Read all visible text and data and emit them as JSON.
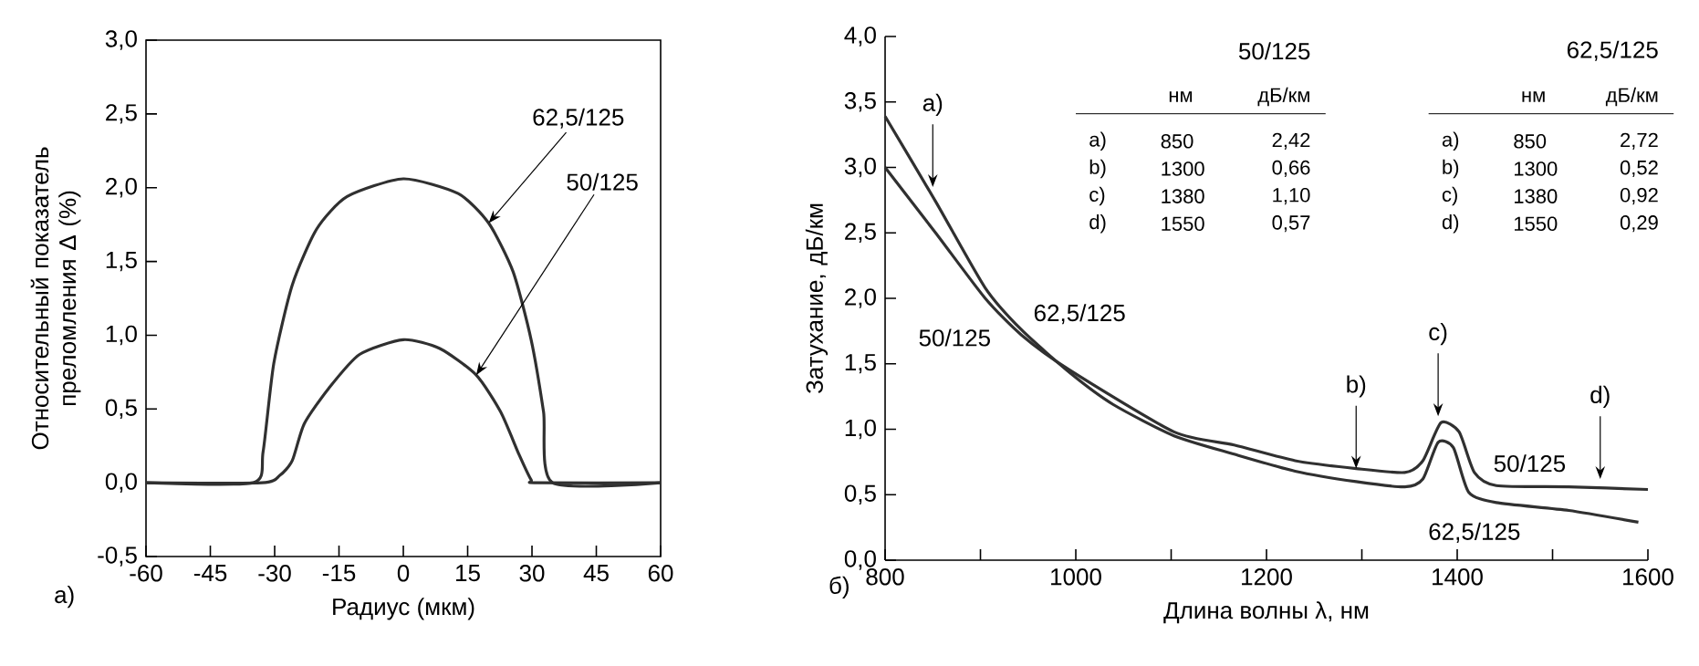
{
  "chart_data": [
    {
      "type": "line",
      "xlabel": "Радиус (мкм)",
      "ylabel": "Относительный показатель преломления Δ (%)",
      "xlim": [
        -60,
        60
      ],
      "ylim": [
        -0.5,
        3.0
      ],
      "xticks": [
        -60,
        -45,
        -30,
        -15,
        0,
        15,
        30,
        45,
        60
      ],
      "yticks": [
        {
          "value": -0.5,
          "label": "-0,5"
        },
        {
          "value": 0,
          "label": "0,0"
        },
        {
          "value": 0.5,
          "label": "0,5"
        },
        {
          "value": 1.0,
          "label": "1,0"
        },
        {
          "value": 1.5,
          "label": "1,5"
        },
        {
          "value": 2.0,
          "label": "2,0"
        },
        {
          "value": 2.5,
          "label": "2,5"
        },
        {
          "value": 3.0,
          "label": "3,0"
        }
      ],
      "series": [
        {
          "name": "62,5/125",
          "color": "#303030",
          "x": [
            -60,
            -35,
            -32.7,
            -30.2,
            -25.9,
            -20.2,
            -13.1,
            0,
            12.8,
            19.9,
            25.6,
            29.8,
            32.7,
            34.8,
            60
          ],
          "values": [
            0,
            0,
            0.21,
            0.81,
            1.34,
            1.72,
            1.94,
            2.06,
            1.96,
            1.76,
            1.43,
            0.97,
            0.48,
            0,
            0
          ]
        },
        {
          "name": "50/125",
          "color": "#303030",
          "x": [
            -60,
            -33,
            -28.8,
            -25.9,
            -23.1,
            -17.4,
            -10.2,
            0,
            8.5,
            17.0,
            22.7,
            27.0,
            29.8,
            31.2,
            60
          ],
          "values": [
            0,
            0,
            0.05,
            0.15,
            0.4,
            0.64,
            0.87,
            0.97,
            0.91,
            0.73,
            0.48,
            0.19,
            0.02,
            0,
            0
          ]
        }
      ],
      "annotations": [
        "а)"
      ]
    },
    {
      "type": "line",
      "xlabel": "Длина волны λ, нм",
      "ylabel": "Затухание, дБ/км",
      "xlim": [
        800,
        1600
      ],
      "ylim": [
        0,
        4.0
      ],
      "xticks": [
        800,
        {
          "value": 900,
          "label": null
        },
        1000,
        {
          "value": 1100,
          "label": null
        },
        1200,
        {
          "value": 1300,
          "label": null
        },
        1400,
        {
          "value": 1500,
          "label": null
        },
        1600
      ],
      "yticks": [
        {
          "value": 0,
          "label": "0,0"
        },
        {
          "value": 0.5,
          "label": "0,5"
        },
        {
          "value": 1.0,
          "label": "1,0"
        },
        {
          "value": 1.5,
          "label": "1,5"
        },
        {
          "value": 2.0,
          "label": "2,0"
        },
        {
          "value": 2.5,
          "label": "2,5"
        },
        {
          "value": 3.0,
          "label": "3,0"
        },
        {
          "value": 3.5,
          "label": "3,5"
        },
        {
          "value": 4.0,
          "label": "4,0"
        }
      ],
      "series": [
        {
          "name": "62,5/125",
          "color": "#303030",
          "x": [
            800,
            853,
            905,
            943,
            994,
            1039,
            1103,
            1166,
            1230,
            1294,
            1345,
            1364,
            1380,
            1396,
            1412,
            1441,
            1517,
            1590
          ],
          "values": [
            3.39,
            2.74,
            2.08,
            1.76,
            1.43,
            1.19,
            0.95,
            0.81,
            0.68,
            0.6,
            0.56,
            0.62,
            0.9,
            0.86,
            0.52,
            0.44,
            0.38,
            0.29
          ]
        },
        {
          "name": "50/125",
          "color": "#303030",
          "x": [
            800,
            853,
            905,
            943,
            994,
            1103,
            1166,
            1230,
            1294,
            1345,
            1364,
            1383,
            1402,
            1418,
            1441,
            1517,
            1600
          ],
          "values": [
            3.0,
            2.5,
            2.0,
            1.72,
            1.45,
            0.98,
            0.88,
            0.76,
            0.7,
            0.67,
            0.76,
            1.05,
            0.98,
            0.67,
            0.57,
            0.56,
            0.54
          ]
        }
      ],
      "annotations": [
        "б)",
        "50/125",
        "нм",
        "дБ/км",
        "a)",
        "850",
        "2,42",
        "b)",
        "1300",
        "0,66",
        "c)",
        "1380",
        "1,10",
        "d)",
        "1550",
        "0,57",
        "62,5/125",
        "нм",
        "дБ/км",
        "a)",
        "850",
        "2,72",
        "b)",
        "1300",
        "0,52",
        "c)",
        "1380",
        "0,92",
        "d)",
        "1550",
        "0,29",
        {
          "text": "a)",
          "x": 850,
          "y": 2.85
        },
        {
          "text": "b)",
          "x": 1294,
          "y": 0.7
        },
        {
          "text": "c)",
          "x": 1380,
          "y": 1.1
        },
        {
          "text": "d)",
          "x": 1550,
          "y": 0.62
        },
        "50/125",
        "62,5/125"
      ]
    }
  ]
}
